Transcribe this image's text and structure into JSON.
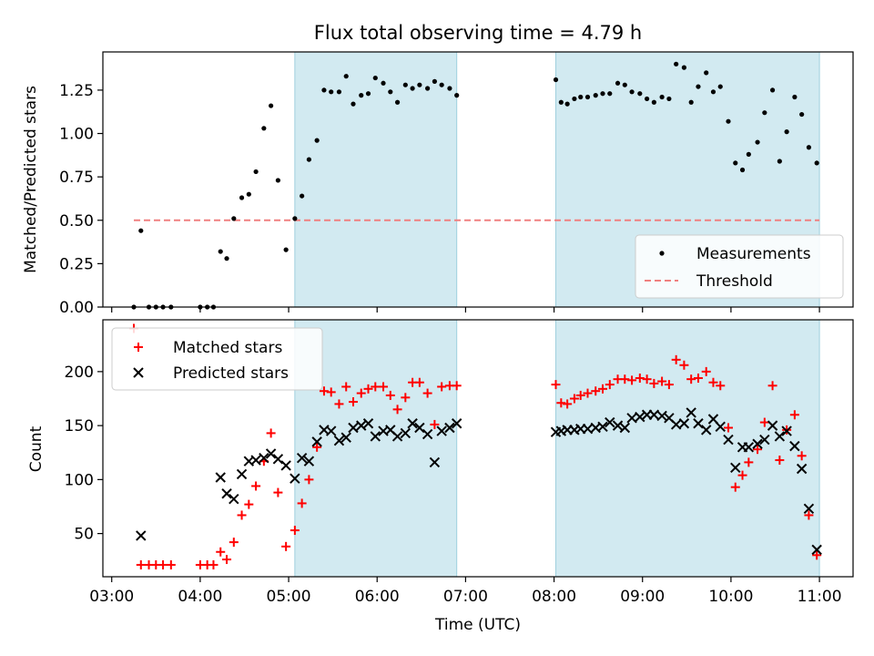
{
  "title": "Flux total observing time = 4.79 h",
  "colors": {
    "shade": "#add8e6",
    "measure": "#000000",
    "threshold": "#f08080",
    "matched": "#ff0000",
    "predicted": "#000000"
  },
  "chart_data": [
    {
      "type": "scatter",
      "ylabel": "Matched/Predicted stars",
      "xlim_hours": [
        2.9,
        11.38
      ],
      "ylim": [
        0,
        1.47
      ],
      "yticks": [
        0.0,
        0.25,
        0.5,
        0.75,
        1.0,
        1.25
      ],
      "ytick_labels": [
        "0.00",
        "0.25",
        "0.50",
        "0.75",
        "1.00",
        "1.25"
      ],
      "shaded_intervals_hours": [
        [
          5.07,
          6.9
        ],
        [
          8.02,
          11.0
        ]
      ],
      "legend": {
        "placement": "lower-right",
        "entries": [
          "Measurements",
          "Threshold"
        ]
      },
      "threshold": {
        "name": "Threshold",
        "value": 0.5,
        "x_range_hours": [
          3.25,
          11.0
        ]
      },
      "series": [
        {
          "name": "Measurements",
          "points": [
            [
              3.25,
              0.0
            ],
            [
              3.33,
              0.44
            ],
            [
              3.42,
              0.0
            ],
            [
              3.5,
              0.0
            ],
            [
              3.58,
              0.0
            ],
            [
              3.67,
              0.0
            ],
            [
              4.0,
              0.0
            ],
            [
              4.08,
              0.0
            ],
            [
              4.15,
              0.0
            ],
            [
              4.23,
              0.32
            ],
            [
              4.3,
              0.28
            ],
            [
              4.38,
              0.51
            ],
            [
              4.47,
              0.63
            ],
            [
              4.55,
              0.65
            ],
            [
              4.63,
              0.78
            ],
            [
              4.72,
              1.03
            ],
            [
              4.8,
              1.16
            ],
            [
              4.88,
              0.73
            ],
            [
              4.97,
              0.33
            ],
            [
              5.07,
              0.51
            ],
            [
              5.15,
              0.64
            ],
            [
              5.23,
              0.85
            ],
            [
              5.32,
              0.96
            ],
            [
              5.4,
              1.25
            ],
            [
              5.48,
              1.24
            ],
            [
              5.57,
              1.24
            ],
            [
              5.65,
              1.33
            ],
            [
              5.73,
              1.17
            ],
            [
              5.82,
              1.22
            ],
            [
              5.9,
              1.23
            ],
            [
              5.98,
              1.32
            ],
            [
              6.07,
              1.29
            ],
            [
              6.15,
              1.24
            ],
            [
              6.23,
              1.18
            ],
            [
              6.32,
              1.28
            ],
            [
              6.4,
              1.26
            ],
            [
              6.48,
              1.28
            ],
            [
              6.57,
              1.26
            ],
            [
              6.65,
              1.3
            ],
            [
              6.73,
              1.28
            ],
            [
              6.82,
              1.26
            ],
            [
              6.9,
              1.22
            ],
            [
              8.02,
              1.31
            ],
            [
              8.08,
              1.18
            ],
            [
              8.15,
              1.17
            ],
            [
              8.23,
              1.2
            ],
            [
              8.3,
              1.21
            ],
            [
              8.38,
              1.21
            ],
            [
              8.47,
              1.22
            ],
            [
              8.55,
              1.23
            ],
            [
              8.63,
              1.23
            ],
            [
              8.72,
              1.29
            ],
            [
              8.8,
              1.28
            ],
            [
              8.88,
              1.24
            ],
            [
              8.97,
              1.23
            ],
            [
              9.05,
              1.2
            ],
            [
              9.13,
              1.18
            ],
            [
              9.22,
              1.21
            ],
            [
              9.3,
              1.2
            ],
            [
              9.38,
              1.4
            ],
            [
              9.47,
              1.38
            ],
            [
              9.55,
              1.18
            ],
            [
              9.63,
              1.27
            ],
            [
              9.72,
              1.35
            ],
            [
              9.8,
              1.24
            ],
            [
              9.88,
              1.27
            ],
            [
              9.97,
              1.07
            ],
            [
              10.05,
              0.83
            ],
            [
              10.13,
              0.79
            ],
            [
              10.2,
              0.88
            ],
            [
              10.3,
              0.95
            ],
            [
              10.38,
              1.12
            ],
            [
              10.47,
              1.25
            ],
            [
              10.55,
              0.84
            ],
            [
              10.63,
              1.01
            ],
            [
              10.72,
              1.21
            ],
            [
              10.8,
              1.11
            ],
            [
              10.88,
              0.92
            ],
            [
              10.97,
              0.83
            ]
          ]
        }
      ]
    },
    {
      "type": "scatter",
      "xlabel": "Time (UTC)",
      "ylabel": "Count",
      "xlim_hours": [
        2.9,
        11.38
      ],
      "ylim": [
        10,
        248
      ],
      "yticks": [
        50,
        100,
        150,
        200
      ],
      "ytick_labels": [
        "50",
        "100",
        "150",
        "200"
      ],
      "xticks_hours": [
        3,
        4,
        5,
        6,
        7,
        8,
        9,
        10,
        11
      ],
      "xtick_labels": [
        "03:00",
        "04:00",
        "05:00",
        "06:00",
        "07:00",
        "08:00",
        "09:00",
        "10:00",
        "11:00"
      ],
      "shaded_intervals_hours": [
        [
          5.07,
          6.9
        ],
        [
          8.02,
          11.0
        ]
      ],
      "legend": {
        "placement": "upper-left",
        "entries": [
          "Matched stars",
          "Predicted stars"
        ]
      },
      "series": [
        {
          "name": "Matched stars",
          "marker": "plus",
          "points": [
            [
              3.25,
              240
            ],
            [
              3.33,
              21
            ],
            [
              3.42,
              21
            ],
            [
              3.5,
              21
            ],
            [
              3.58,
              21
            ],
            [
              3.67,
              21
            ],
            [
              4.0,
              21
            ],
            [
              4.08,
              21
            ],
            [
              4.15,
              21
            ],
            [
              4.23,
              33
            ],
            [
              4.3,
              26
            ],
            [
              4.38,
              42
            ],
            [
              4.47,
              67
            ],
            [
              4.55,
              77
            ],
            [
              4.63,
              94
            ],
            [
              4.72,
              117
            ],
            [
              4.8,
              143
            ],
            [
              4.88,
              88
            ],
            [
              4.97,
              38
            ],
            [
              5.07,
              53
            ],
            [
              5.15,
              78
            ],
            [
              5.23,
              100
            ],
            [
              5.32,
              130
            ],
            [
              5.4,
              182
            ],
            [
              5.48,
              181
            ],
            [
              5.57,
              170
            ],
            [
              5.65,
              186
            ],
            [
              5.73,
              172
            ],
            [
              5.82,
              180
            ],
            [
              5.9,
              184
            ],
            [
              5.98,
              186
            ],
            [
              6.07,
              186
            ],
            [
              6.15,
              178
            ],
            [
              6.23,
              165
            ],
            [
              6.32,
              176
            ],
            [
              6.4,
              190
            ],
            [
              6.48,
              190
            ],
            [
              6.57,
              180
            ],
            [
              6.65,
              151
            ],
            [
              6.73,
              186
            ],
            [
              6.82,
              187
            ],
            [
              6.9,
              187
            ],
            [
              8.02,
              188
            ],
            [
              8.08,
              171
            ],
            [
              8.15,
              170
            ],
            [
              8.23,
              175
            ],
            [
              8.3,
              178
            ],
            [
              8.38,
              180
            ],
            [
              8.47,
              182
            ],
            [
              8.55,
              184
            ],
            [
              8.63,
              188
            ],
            [
              8.72,
              193
            ],
            [
              8.8,
              193
            ],
            [
              8.88,
              192
            ],
            [
              8.97,
              194
            ],
            [
              9.05,
              193
            ],
            [
              9.13,
              189
            ],
            [
              9.22,
              191
            ],
            [
              9.3,
              188
            ],
            [
              9.38,
              211
            ],
            [
              9.47,
              206
            ],
            [
              9.55,
              193
            ],
            [
              9.63,
              194
            ],
            [
              9.72,
              200
            ],
            [
              9.8,
              190
            ],
            [
              9.88,
              187
            ],
            [
              9.97,
              148
            ],
            [
              10.05,
              93
            ],
            [
              10.13,
              104
            ],
            [
              10.2,
              116
            ],
            [
              10.3,
              128
            ],
            [
              10.38,
              153
            ],
            [
              10.47,
              187
            ],
            [
              10.55,
              118
            ],
            [
              10.63,
              146
            ],
            [
              10.72,
              160
            ],
            [
              10.8,
              122
            ],
            [
              10.88,
              67
            ],
            [
              10.97,
              30
            ]
          ]
        },
        {
          "name": "Predicted stars",
          "marker": "x",
          "points": [
            [
              3.33,
              48
            ],
            [
              4.23,
              102
            ],
            [
              4.3,
              87
            ],
            [
              4.38,
              82
            ],
            [
              4.47,
              105
            ],
            [
              4.55,
              117
            ],
            [
              4.63,
              118
            ],
            [
              4.72,
              120
            ],
            [
              4.8,
              124
            ],
            [
              4.88,
              119
            ],
            [
              4.97,
              113
            ],
            [
              5.07,
              101
            ],
            [
              5.15,
              120
            ],
            [
              5.23,
              117
            ],
            [
              5.32,
              135
            ],
            [
              5.4,
              146
            ],
            [
              5.48,
              145
            ],
            [
              5.57,
              136
            ],
            [
              5.65,
              139
            ],
            [
              5.73,
              148
            ],
            [
              5.82,
              150
            ],
            [
              5.9,
              152
            ],
            [
              5.98,
              140
            ],
            [
              6.07,
              145
            ],
            [
              6.15,
              146
            ],
            [
              6.23,
              140
            ],
            [
              6.32,
              143
            ],
            [
              6.4,
              152
            ],
            [
              6.48,
              148
            ],
            [
              6.57,
              142
            ],
            [
              6.65,
              116
            ],
            [
              6.73,
              145
            ],
            [
              6.82,
              148
            ],
            [
              6.9,
              152
            ],
            [
              8.02,
              144
            ],
            [
              8.08,
              145
            ],
            [
              8.15,
              146
            ],
            [
              8.23,
              146
            ],
            [
              8.3,
              147
            ],
            [
              8.38,
              147
            ],
            [
              8.47,
              148
            ],
            [
              8.55,
              149
            ],
            [
              8.63,
              153
            ],
            [
              8.72,
              150
            ],
            [
              8.8,
              148
            ],
            [
              8.88,
              157
            ],
            [
              8.97,
              158
            ],
            [
              9.05,
              160
            ],
            [
              9.13,
              160
            ],
            [
              9.22,
              159
            ],
            [
              9.3,
              157
            ],
            [
              9.38,
              151
            ],
            [
              9.47,
              152
            ],
            [
              9.55,
              162
            ],
            [
              9.63,
              152
            ],
            [
              9.72,
              146
            ],
            [
              9.8,
              156
            ],
            [
              9.88,
              149
            ],
            [
              9.97,
              137
            ],
            [
              10.05,
              111
            ],
            [
              10.13,
              130
            ],
            [
              10.2,
              130
            ],
            [
              10.3,
              133
            ],
            [
              10.38,
              137
            ],
            [
              10.47,
              150
            ],
            [
              10.55,
              140
            ],
            [
              10.63,
              145
            ],
            [
              10.72,
              131
            ],
            [
              10.8,
              110
            ],
            [
              10.88,
              73
            ],
            [
              10.97,
              35
            ]
          ]
        }
      ]
    }
  ]
}
